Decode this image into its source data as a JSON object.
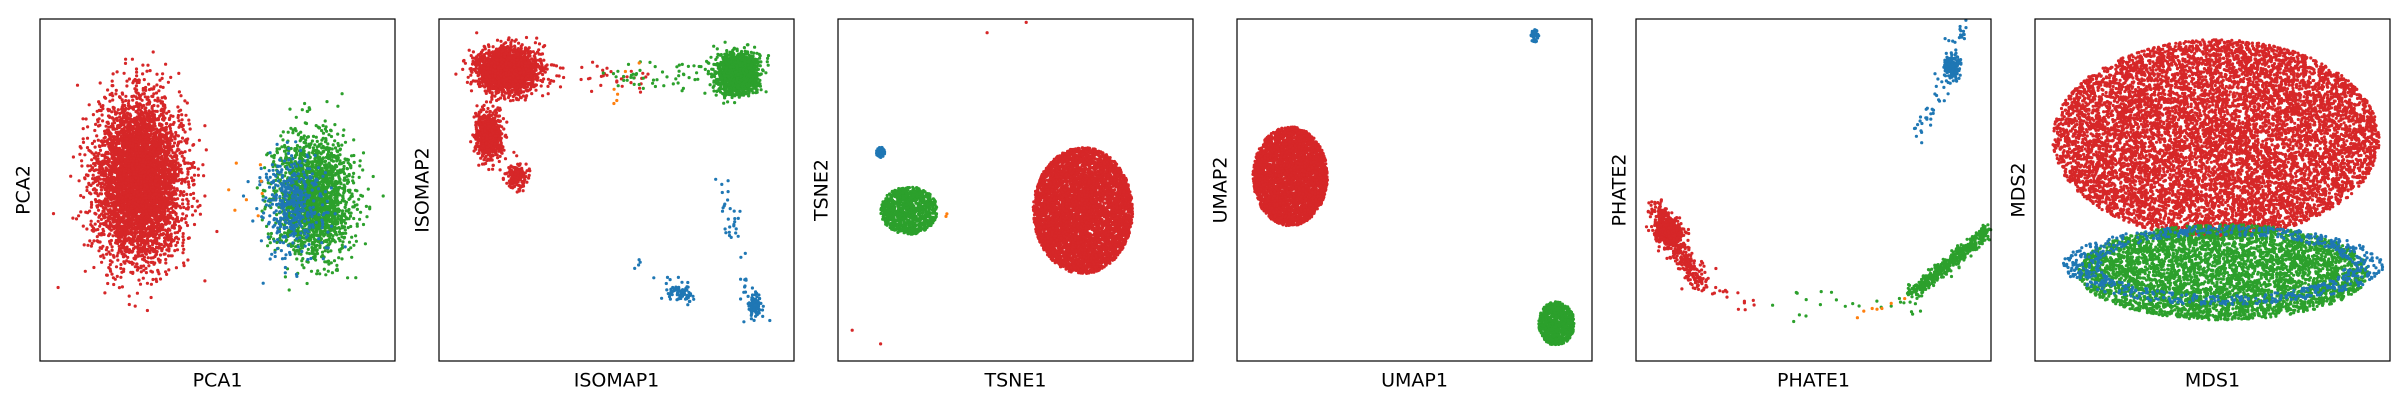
{
  "colors": {
    "blue": "#1f77b4",
    "orange": "#ff7f0e",
    "green": "#2ca02c",
    "red": "#d62728"
  },
  "chart_data": [
    {
      "type": "scatter",
      "xlabel": "PCA1",
      "ylabel": "PCA2",
      "xlim": [
        0,
        100
      ],
      "ylim": [
        0,
        100
      ],
      "grid": false,
      "legend": "none",
      "clusters": [
        {
          "color": "red",
          "count": 5200,
          "shape": "ellipse",
          "cx": 28,
          "cy": 53,
          "rx": 13,
          "ry": 25,
          "dist": "gaussian"
        },
        {
          "color": "green",
          "count": 2000,
          "shape": "ellipse",
          "cx": 77,
          "cy": 48,
          "rx": 12,
          "ry": 19,
          "dist": "gaussian"
        },
        {
          "color": "blue",
          "count": 420,
          "shape": "ellipse",
          "cx": 71,
          "cy": 46,
          "rx": 10,
          "ry": 16,
          "dist": "gaussian"
        },
        {
          "color": "orange",
          "count": 8,
          "shape": "ellipse",
          "cx": 58,
          "cy": 50,
          "rx": 5,
          "ry": 8,
          "dist": "uniform"
        }
      ]
    },
    {
      "type": "scatter",
      "xlabel": "ISOMAP1",
      "ylabel": "ISOMAP2",
      "xlim": [
        0,
        100
      ],
      "ylim": [
        0,
        100
      ],
      "grid": false,
      "legend": "none",
      "clusters": [
        {
          "color": "red",
          "count": 2400,
          "shape": "ellipse",
          "cx": 19,
          "cy": 85,
          "rx": 9,
          "ry": 7,
          "dist": "gaussian"
        },
        {
          "color": "red",
          "count": 900,
          "shape": "ellipse",
          "cx": 14,
          "cy": 66,
          "rx": 4,
          "ry": 7,
          "dist": "gaussian"
        },
        {
          "color": "red",
          "count": 180,
          "shape": "ellipse",
          "cx": 22,
          "cy": 54,
          "rx": 3,
          "ry": 4,
          "dist": "gaussian"
        },
        {
          "color": "red",
          "count": 40,
          "shape": "segment",
          "x1": 30,
          "y1": 85,
          "x2": 60,
          "y2": 82,
          "spread": 5
        },
        {
          "color": "green",
          "count": 1800,
          "shape": "ellipse",
          "cx": 84,
          "cy": 84,
          "rx": 6,
          "ry": 6,
          "dist": "gaussian"
        },
        {
          "color": "green",
          "count": 60,
          "shape": "segment",
          "x1": 48,
          "y1": 82,
          "x2": 78,
          "y2": 84,
          "spread": 6
        },
        {
          "color": "blue",
          "count": 80,
          "shape": "ellipse",
          "cx": 89,
          "cy": 16,
          "rx": 2,
          "ry": 4,
          "dist": "gaussian"
        },
        {
          "color": "blue",
          "count": 60,
          "shape": "ellipse",
          "cx": 68,
          "cy": 20,
          "rx": 4,
          "ry": 2.5,
          "dist": "gaussian"
        },
        {
          "color": "blue",
          "count": 50,
          "shape": "segment",
          "x1": 80,
          "y1": 55,
          "x2": 88,
          "y2": 10,
          "spread": 4
        },
        {
          "color": "blue",
          "count": 20,
          "shape": "segment",
          "x1": 55,
          "y1": 30,
          "x2": 72,
          "y2": 18,
          "spread": 4
        },
        {
          "color": "orange",
          "count": 6,
          "shape": "segment",
          "x1": 50,
          "y1": 74,
          "x2": 55,
          "y2": 88,
          "spread": 3
        }
      ]
    },
    {
      "type": "scatter",
      "xlabel": "TSNE1",
      "ylabel": "TSNE2",
      "xlim": [
        0,
        100
      ],
      "ylim": [
        0,
        100
      ],
      "grid": false,
      "legend": "none",
      "clusters": [
        {
          "color": "red",
          "count": 5200,
          "shape": "ellipse",
          "cx": 69,
          "cy": 44,
          "rx": 14,
          "ry": 18.5,
          "dist": "disk"
        },
        {
          "color": "green",
          "count": 900,
          "shape": "ellipse",
          "cx": 20,
          "cy": 44,
          "rx": 8,
          "ry": 7,
          "dist": "disk"
        },
        {
          "color": "blue",
          "count": 60,
          "shape": "ellipse",
          "cx": 12,
          "cy": 61,
          "rx": 1.2,
          "ry": 1.5,
          "dist": "disk"
        },
        {
          "color": "orange",
          "count": 2,
          "shape": "ellipse",
          "cx": 31,
          "cy": 43,
          "rx": 1,
          "ry": 1,
          "dist": "uniform"
        },
        {
          "color": "red",
          "count": 4,
          "shape": "points",
          "points": [
            [
              42,
              96
            ],
            [
              53,
              99
            ],
            [
              4,
              9
            ],
            [
              12,
              5
            ]
          ]
        }
      ]
    },
    {
      "type": "scatter",
      "xlabel": "UMAP1",
      "ylabel": "UMAP2",
      "xlim": [
        0,
        100
      ],
      "ylim": [
        0,
        100
      ],
      "grid": false,
      "legend": "none",
      "clusters": [
        {
          "color": "red",
          "count": 3600,
          "shape": "ellipse",
          "cx": 15,
          "cy": 54,
          "rx": 10.5,
          "ry": 14.5,
          "dist": "disk"
        },
        {
          "color": "green",
          "count": 700,
          "shape": "ellipse",
          "cx": 90,
          "cy": 11,
          "rx": 5,
          "ry": 6.5,
          "dist": "disk"
        },
        {
          "color": "blue",
          "count": 40,
          "shape": "ellipse",
          "cx": 84,
          "cy": 95,
          "rx": 1.2,
          "ry": 2,
          "dist": "disk"
        }
      ]
    },
    {
      "type": "scatter",
      "xlabel": "PHATE1",
      "ylabel": "PHATE2",
      "xlim": [
        0,
        100
      ],
      "ylim": [
        0,
        100
      ],
      "grid": false,
      "legend": "none",
      "clusters": [
        {
          "color": "red",
          "count": 700,
          "shape": "ellipse",
          "cx": 9,
          "cy": 38,
          "rx": 3.5,
          "ry": 3.5,
          "dist": "gaussian"
        },
        {
          "color": "red",
          "count": 350,
          "shape": "segment",
          "x1": 5,
          "y1": 45,
          "x2": 18,
          "y2": 22,
          "spread": 4
        },
        {
          "color": "red",
          "count": 20,
          "shape": "segment",
          "x1": 16,
          "y1": 26,
          "x2": 32,
          "y2": 16,
          "spread": 4
        },
        {
          "color": "green",
          "count": 450,
          "shape": "segment",
          "x1": 78,
          "y1": 20,
          "x2": 99,
          "y2": 38,
          "spread": 3
        },
        {
          "color": "green",
          "count": 25,
          "shape": "segment",
          "x1": 40,
          "y1": 18,
          "x2": 80,
          "y2": 16,
          "spread": 6
        },
        {
          "color": "blue",
          "count": 160,
          "shape": "ellipse",
          "cx": 89,
          "cy": 86,
          "rx": 2.2,
          "ry": 4,
          "dist": "gaussian"
        },
        {
          "color": "blue",
          "count": 60,
          "shape": "segment",
          "x1": 80,
          "y1": 65,
          "x2": 92,
          "y2": 97,
          "spread": 4
        },
        {
          "color": "orange",
          "count": 7,
          "shape": "segment",
          "x1": 55,
          "y1": 10,
          "x2": 77,
          "y2": 20,
          "spread": 3
        }
      ]
    },
    {
      "type": "scatter",
      "xlabel": "MDS1",
      "ylabel": "MDS2",
      "xlim": [
        0,
        100
      ],
      "ylim": [
        0,
        100
      ],
      "grid": false,
      "legend": "none",
      "clusters": [
        {
          "color": "red",
          "count": 9000,
          "shape": "ellipse",
          "cx": 51,
          "cy": 65,
          "rx": 46,
          "ry": 29,
          "dist": "disk"
        },
        {
          "color": "green",
          "count": 4200,
          "shape": "ellipse",
          "cx": 53,
          "cy": 26,
          "rx": 41,
          "ry": 14,
          "dist": "disk"
        },
        {
          "color": "blue",
          "count": 700,
          "shape": "ellipse",
          "cx": 53,
          "cy": 28,
          "rx": 43,
          "ry": 11,
          "dist": "ring"
        }
      ]
    }
  ]
}
